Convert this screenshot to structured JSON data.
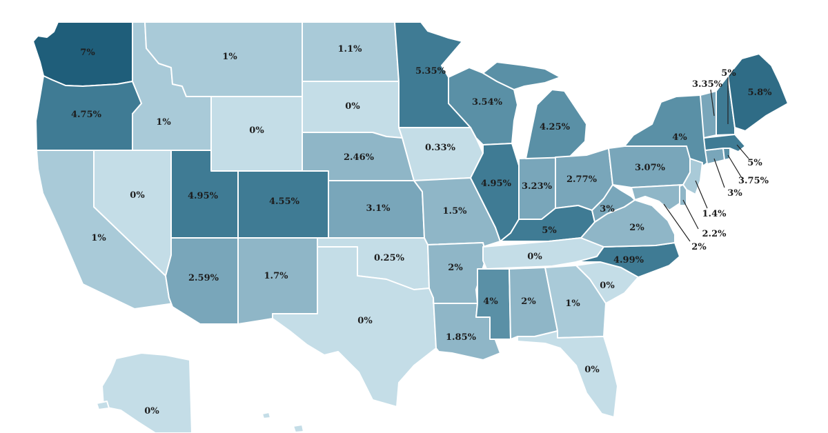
{
  "colors": {
    "0": "#c4dde7",
    "1": "#a9cad8",
    "2": "#8fb6c7",
    "3": "#79a6ba",
    "4": "#5a90a6",
    "5": "#3f7b94",
    "6": "#2f6c86",
    "7": "#1f5e7a"
  },
  "states": [
    {
      "id": "WA",
      "label": "7%",
      "value": 7
    },
    {
      "id": "OR",
      "label": "4.75%",
      "value": 4.75
    },
    {
      "id": "CA",
      "label": "1%",
      "value": 1
    },
    {
      "id": "NV",
      "label": "0%",
      "value": 0
    },
    {
      "id": "ID",
      "label": "1%",
      "value": 1
    },
    {
      "id": "MT",
      "label": "1%",
      "value": 1
    },
    {
      "id": "WY",
      "label": "0%",
      "value": 0
    },
    {
      "id": "UT",
      "label": "4.95%",
      "value": 4.95
    },
    {
      "id": "CO",
      "label": "4.55%",
      "value": 4.55
    },
    {
      "id": "AZ",
      "label": "2.59%",
      "value": 2.59
    },
    {
      "id": "NM",
      "label": "1.7%",
      "value": 1.7
    },
    {
      "id": "ND",
      "label": "1.1%",
      "value": 1.1
    },
    {
      "id": "SD",
      "label": "0%",
      "value": 0
    },
    {
      "id": "NE",
      "label": "2.46%",
      "value": 2.46
    },
    {
      "id": "KS",
      "label": "3.1%",
      "value": 3.1
    },
    {
      "id": "OK",
      "label": "0.25%",
      "value": 0.25
    },
    {
      "id": "TX",
      "label": "0%",
      "value": 0
    },
    {
      "id": "MN",
      "label": "5.35%",
      "value": 5.35
    },
    {
      "id": "IA",
      "label": "0.33%",
      "value": 0.33
    },
    {
      "id": "MO",
      "label": "1.5%",
      "value": 1.5
    },
    {
      "id": "AR",
      "label": "2%",
      "value": 2
    },
    {
      "id": "LA",
      "label": "1.85%",
      "value": 1.85
    },
    {
      "id": "WI",
      "label": "3.54%",
      "value": 3.54
    },
    {
      "id": "IL",
      "label": "4.95%",
      "value": 4.95
    },
    {
      "id": "MI",
      "label": "4.25%",
      "value": 4.25
    },
    {
      "id": "IN",
      "label": "3.23%",
      "value": 3.23
    },
    {
      "id": "OH",
      "label": "2.77%",
      "value": 2.77
    },
    {
      "id": "KY",
      "label": "5%",
      "value": 5
    },
    {
      "id": "TN",
      "label": "0%",
      "value": 0
    },
    {
      "id": "MS",
      "label": "4%",
      "value": 4
    },
    {
      "id": "AL",
      "label": "2%",
      "value": 2
    },
    {
      "id": "GA",
      "label": "1%",
      "value": 1
    },
    {
      "id": "FL",
      "label": "0%",
      "value": 0
    },
    {
      "id": "SC",
      "label": "0%",
      "value": 0
    },
    {
      "id": "NC",
      "label": "4.99%",
      "value": 4.99
    },
    {
      "id": "VA",
      "label": "2%",
      "value": 2
    },
    {
      "id": "WV",
      "label": "3%",
      "value": 3
    },
    {
      "id": "PA",
      "label": "3.07%",
      "value": 3.07
    },
    {
      "id": "NY",
      "label": "4%",
      "value": 4
    },
    {
      "id": "ME",
      "label": "5.8%",
      "value": 5.8
    },
    {
      "id": "AK",
      "label": "0%",
      "value": 0
    },
    {
      "id": "VT",
      "label": "3.35%",
      "value": 3.35
    },
    {
      "id": "NH",
      "label": "5%",
      "value": 5
    },
    {
      "id": "MA",
      "label": "5%",
      "value": 5
    },
    {
      "id": "RI",
      "label": "3.75%",
      "value": 3.75
    },
    {
      "id": "CT",
      "label": "3%",
      "value": 3
    },
    {
      "id": "NJ",
      "label": "1.4%",
      "value": 1.4
    },
    {
      "id": "DE",
      "label": "2.2%",
      "value": 2.2
    },
    {
      "id": "MD",
      "label": "2%",
      "value": 2
    }
  ]
}
